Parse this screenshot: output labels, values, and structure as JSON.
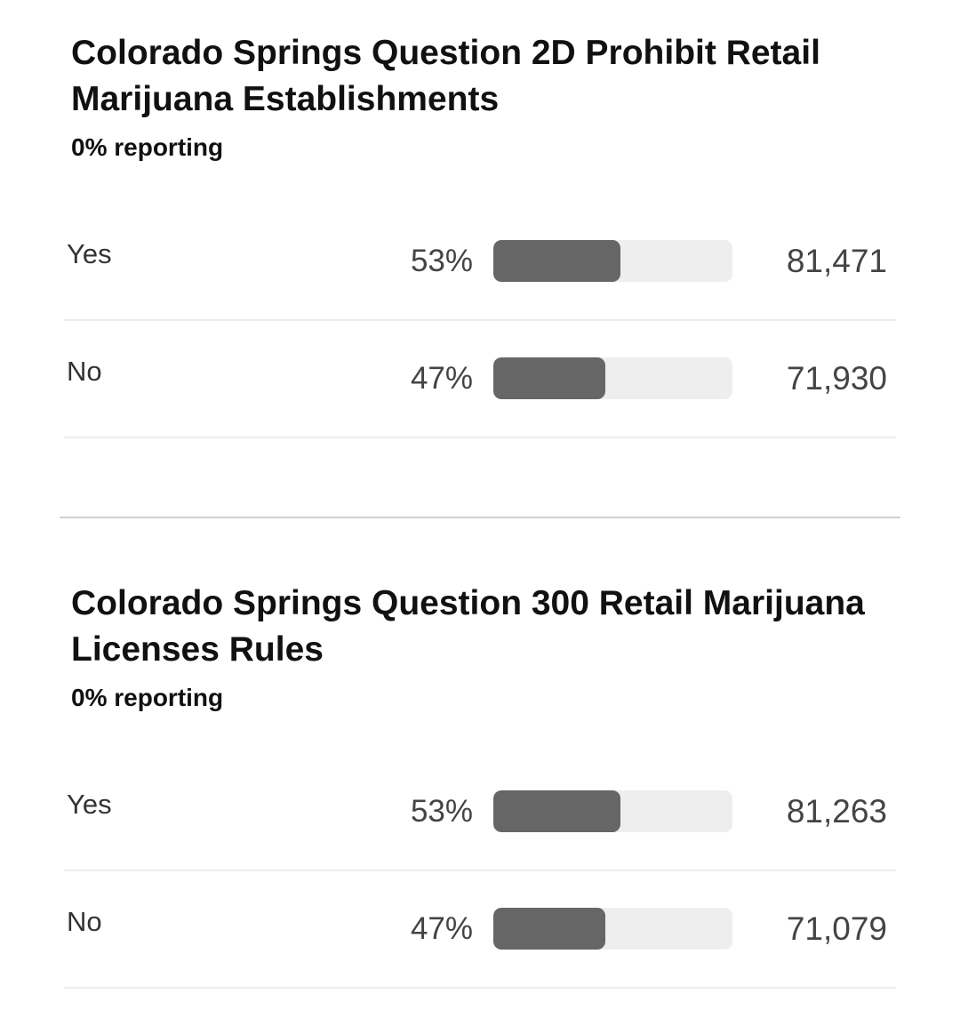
{
  "races": [
    {
      "title": "Colorado Springs Question 2D Prohibit Retail Marijuana Establishments",
      "reporting": "0% reporting",
      "results": [
        {
          "choice": "Yes",
          "percent_label": "53%",
          "share": 0.53,
          "votes": "81,471"
        },
        {
          "choice": "No",
          "percent_label": "47%",
          "share": 0.47,
          "votes": "71,930"
        }
      ]
    },
    {
      "title": "Colorado Springs Question 300 Retail Marijuana Licenses Rules",
      "reporting": "0% reporting",
      "results": [
        {
          "choice": "Yes",
          "percent_label": "53%",
          "share": 0.53,
          "votes": "81,263"
        },
        {
          "choice": "No",
          "percent_label": "47%",
          "share": 0.47,
          "votes": "71,079"
        }
      ]
    }
  ],
  "colors": {
    "bar_fill": "#666666",
    "bar_track": "#eeeeee",
    "divider": "#d0d0d0",
    "row_separator": "#ececec"
  }
}
